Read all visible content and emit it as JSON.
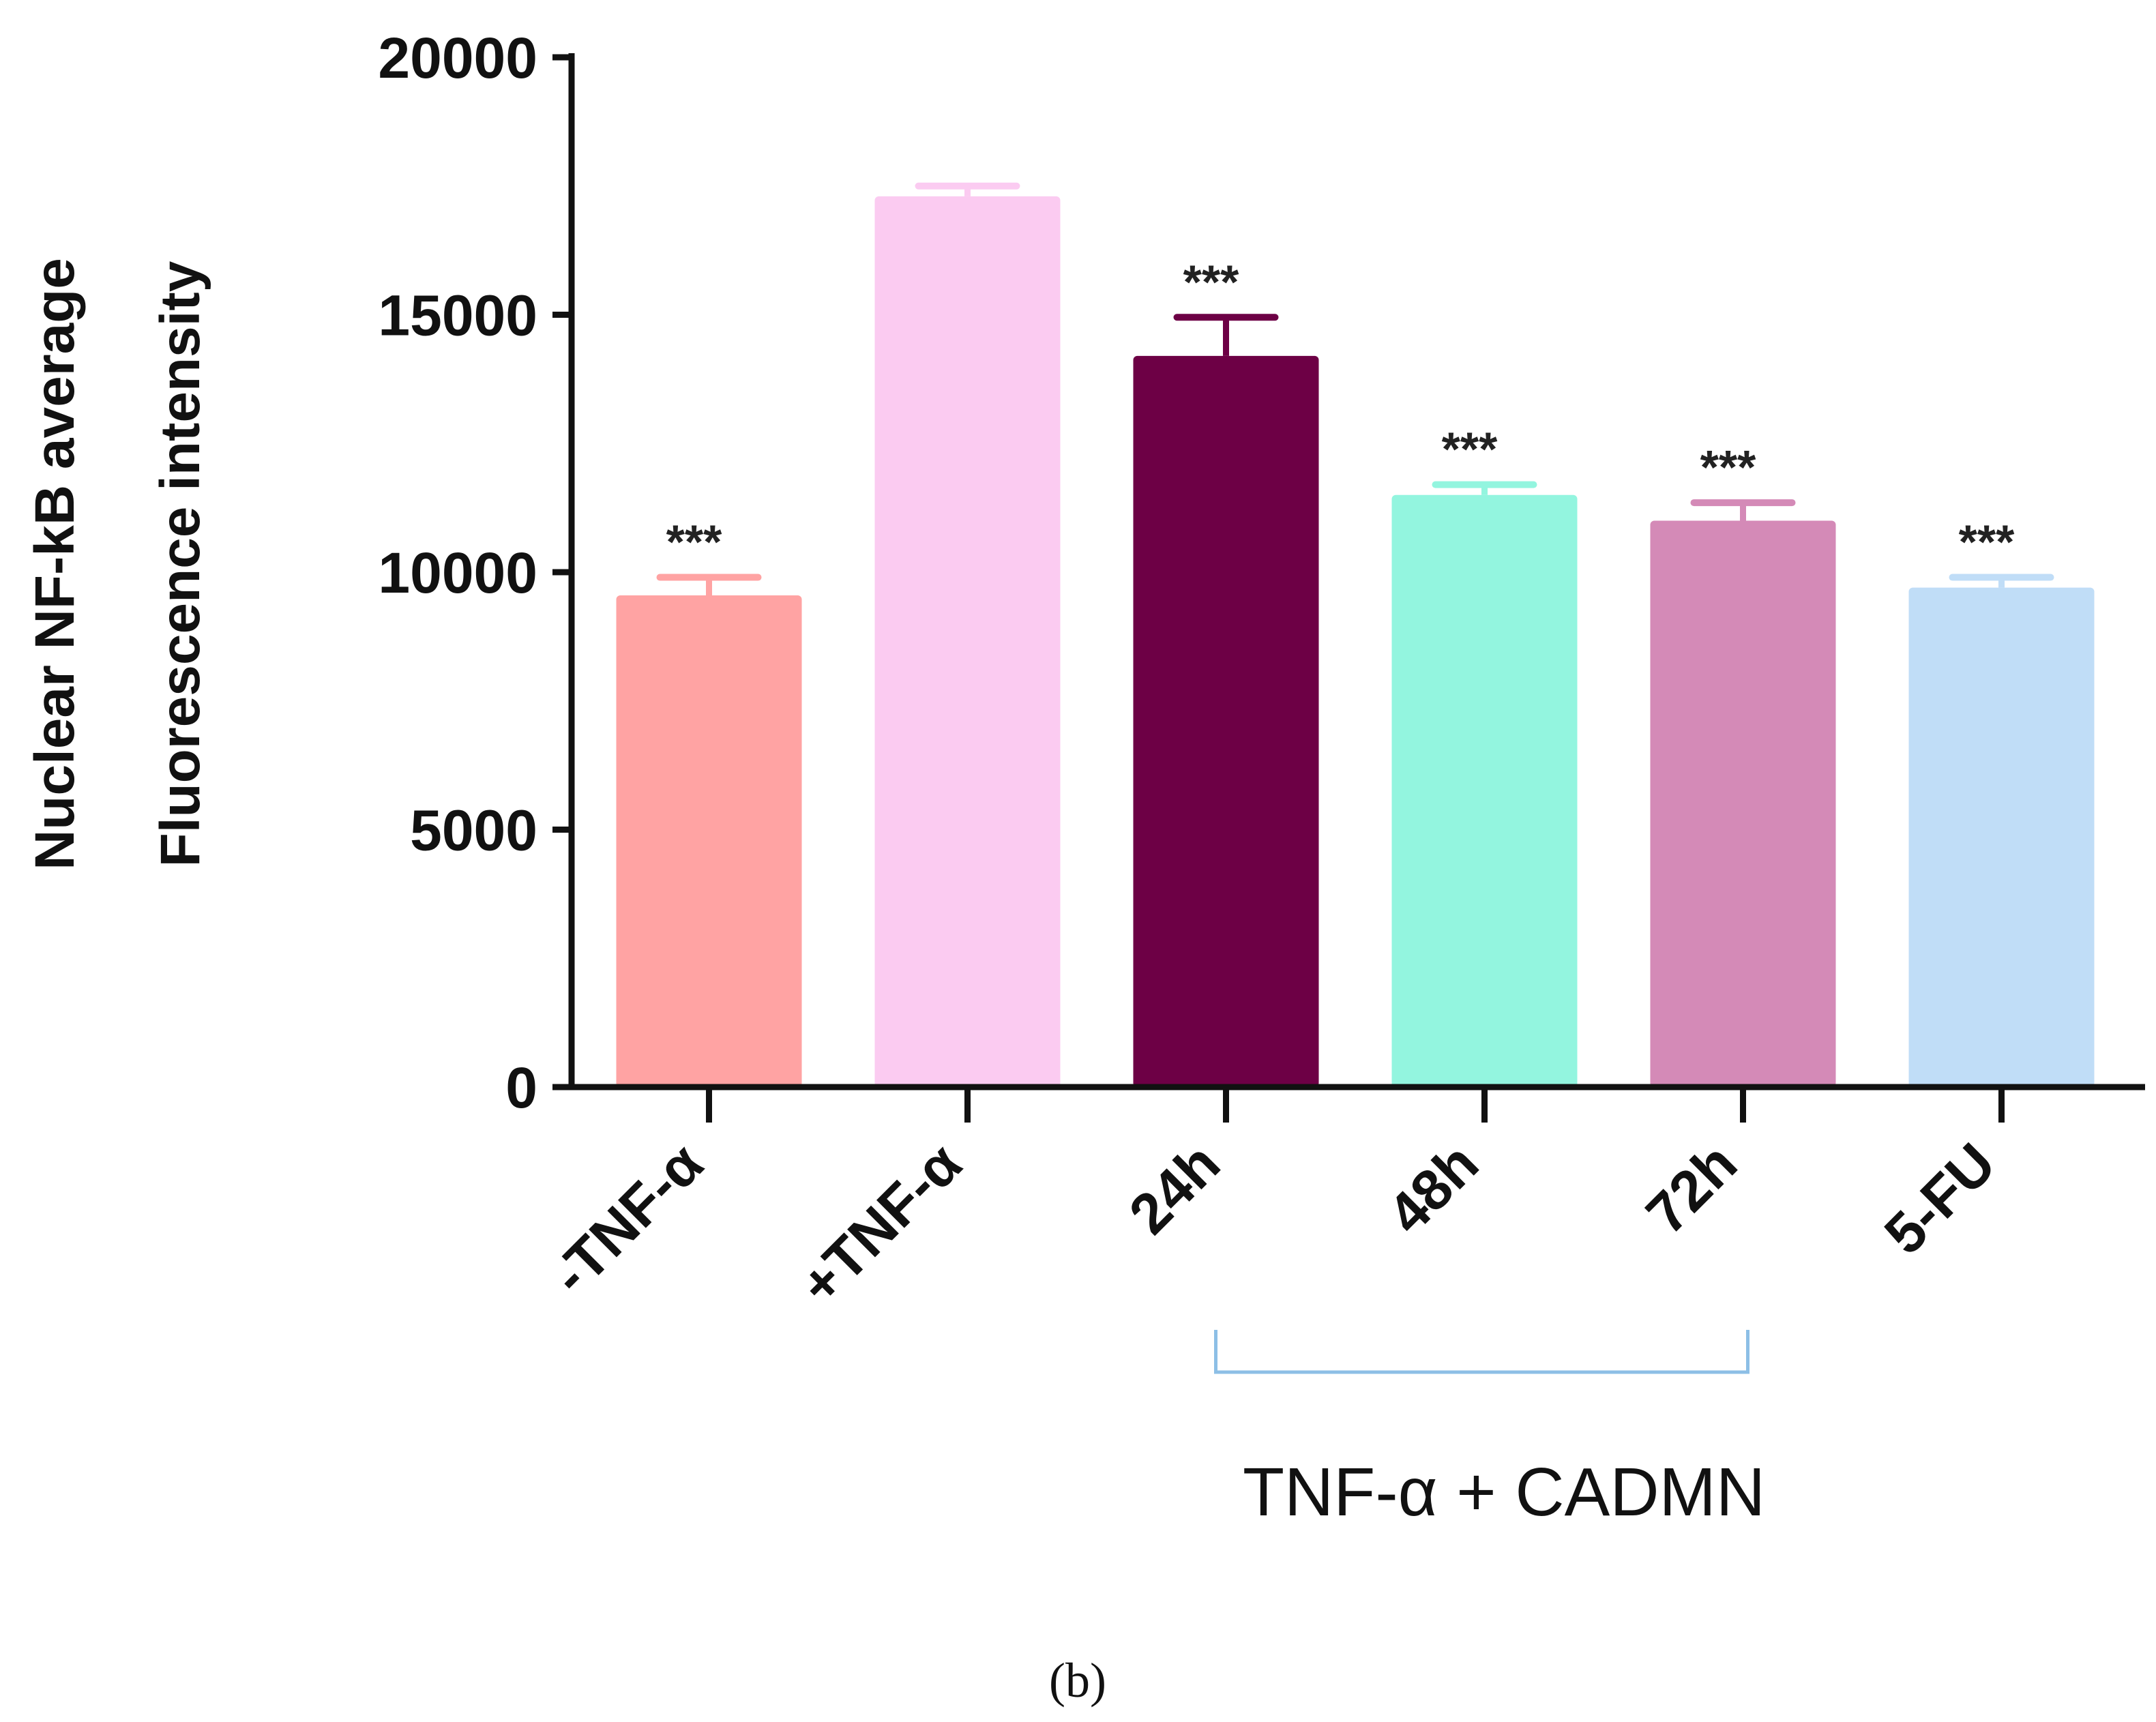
{
  "chart_data": {
    "type": "bar",
    "categories": [
      "-TNF-α",
      "+TNF-α",
      "24h",
      "48h",
      "72h",
      "5-FU"
    ],
    "values": [
      9550,
      17300,
      14200,
      11500,
      11000,
      9700
    ],
    "errors": [
      350,
      200,
      750,
      200,
      350,
      200
    ],
    "significance": [
      "***",
      "",
      "***",
      "***",
      "***",
      "***"
    ],
    "colors": [
      "#FFA3A3",
      "#FBCBF1",
      "#6D0045",
      "#93F5DF",
      "#D48AB7",
      "#C0DDF7"
    ],
    "title": "",
    "xlabel": "",
    "ylabel_lines": [
      "Nuclear NF-kB average",
      "Fluorescence intensity"
    ],
    "ylim": [
      0,
      20000
    ],
    "yticks": [
      0,
      5000,
      10000,
      15000,
      20000
    ],
    "ytick_labels": [
      "0",
      "5000",
      "10000",
      "15000",
      "20000"
    ],
    "group_bracket": {
      "label": "TNF-α + CADMN",
      "from_category": "24h",
      "to_category": "72h",
      "color": "#8DBFE6"
    },
    "grid": false,
    "legend": "none"
  },
  "panel_label": "(b)"
}
